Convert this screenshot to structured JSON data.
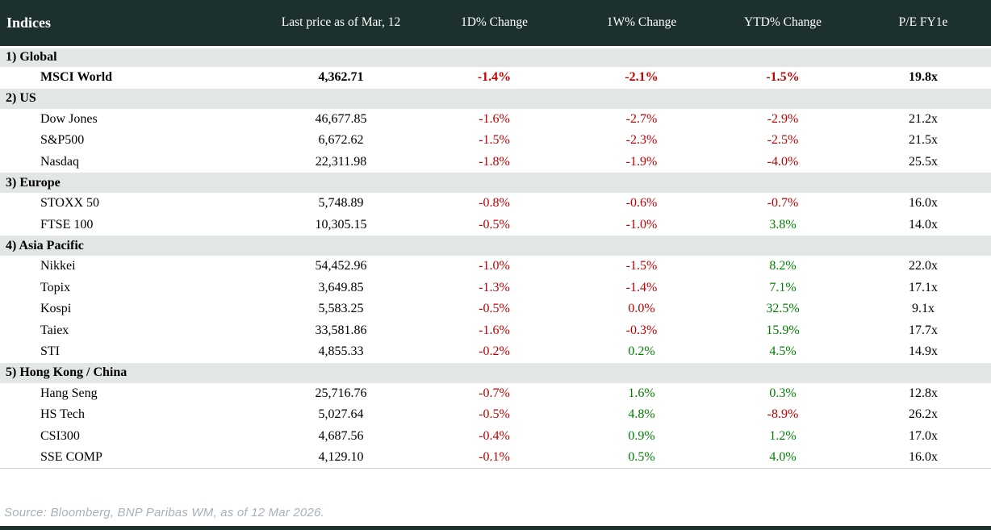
{
  "table": {
    "headers": [
      "Indices",
      "Last price as of Mar, 12",
      "1D% Change",
      "1W% Change",
      "YTD% Change",
      "P/E FY1e"
    ],
    "sections": [
      {
        "label": "1) Global",
        "rows": [
          {
            "name": "MSCI World",
            "emphasis": true,
            "price": "4,362.71",
            "changes": [
              {
                "value": "-1.4%",
                "trend": "neg"
              },
              {
                "value": "-2.1%",
                "trend": "neg"
              },
              {
                "value": "-1.5%",
                "trend": "neg"
              }
            ],
            "pe": "19.8x"
          }
        ]
      },
      {
        "label": "2) US",
        "rows": [
          {
            "name": "Dow Jones",
            "price": "46,677.85",
            "changes": [
              {
                "value": "-1.6%",
                "trend": "neg"
              },
              {
                "value": "-2.7%",
                "trend": "neg"
              },
              {
                "value": "-2.9%",
                "trend": "neg"
              }
            ],
            "pe": "21.2x"
          },
          {
            "name": "S&P500",
            "price": "6,672.62",
            "changes": [
              {
                "value": "-1.5%",
                "trend": "neg"
              },
              {
                "value": "-2.3%",
                "trend": "neg"
              },
              {
                "value": "-2.5%",
                "trend": "neg"
              }
            ],
            "pe": "21.5x"
          },
          {
            "name": "Nasdaq",
            "price": "22,311.98",
            "changes": [
              {
                "value": "-1.8%",
                "trend": "neg"
              },
              {
                "value": "-1.9%",
                "trend": "neg"
              },
              {
                "value": "-4.0%",
                "trend": "neg"
              }
            ],
            "pe": "25.5x"
          }
        ]
      },
      {
        "label": "3) Europe",
        "rows": [
          {
            "name": "STOXX 50",
            "price": "5,748.89",
            "changes": [
              {
                "value": "-0.8%",
                "trend": "neg"
              },
              {
                "value": "-0.6%",
                "trend": "neg"
              },
              {
                "value": "-0.7%",
                "trend": "neg"
              }
            ],
            "pe": "16.0x"
          },
          {
            "name": "FTSE 100",
            "price": "10,305.15",
            "changes": [
              {
                "value": "-0.5%",
                "trend": "neg"
              },
              {
                "value": "-1.0%",
                "trend": "neg"
              },
              {
                "value": "3.8%",
                "trend": "pos"
              }
            ],
            "pe": "14.0x"
          }
        ]
      },
      {
        "label": "4) Asia Pacific",
        "rows": [
          {
            "name": "Nikkei",
            "price": "54,452.96",
            "changes": [
              {
                "value": "-1.0%",
                "trend": "neg"
              },
              {
                "value": "-1.5%",
                "trend": "neg"
              },
              {
                "value": "8.2%",
                "trend": "pos"
              }
            ],
            "pe": "22.0x"
          },
          {
            "name": "Topix",
            "price": "3,649.85",
            "changes": [
              {
                "value": "-1.3%",
                "trend": "neg"
              },
              {
                "value": "-1.4%",
                "trend": "neg"
              },
              {
                "value": "7.1%",
                "trend": "pos"
              }
            ],
            "pe": "17.1x"
          },
          {
            "name": "Kospi",
            "price": "5,583.25",
            "changes": [
              {
                "value": "-0.5%",
                "trend": "neg"
              },
              {
                "value": "0.0%",
                "trend": "neg"
              },
              {
                "value": "32.5%",
                "trend": "pos"
              }
            ],
            "pe": "9.1x"
          },
          {
            "name": "Taiex",
            "price": "33,581.86",
            "changes": [
              {
                "value": "-1.6%",
                "trend": "neg"
              },
              {
                "value": "-0.3%",
                "trend": "neg"
              },
              {
                "value": "15.9%",
                "trend": "pos"
              }
            ],
            "pe": "17.7x"
          },
          {
            "name": "STI",
            "price": "4,855.33",
            "changes": [
              {
                "value": "-0.2%",
                "trend": "neg"
              },
              {
                "value": "0.2%",
                "trend": "pos"
              },
              {
                "value": "4.5%",
                "trend": "pos"
              }
            ],
            "pe": "14.9x"
          }
        ]
      },
      {
        "label": "5) Hong Kong / China",
        "rows": [
          {
            "name": "Hang Seng",
            "price": "25,716.76",
            "changes": [
              {
                "value": "-0.7%",
                "trend": "neg"
              },
              {
                "value": "1.6%",
                "trend": "pos"
              },
              {
                "value": "0.3%",
                "trend": "pos"
              }
            ],
            "pe": "12.8x"
          },
          {
            "name": "HS Tech",
            "price": "5,027.64",
            "changes": [
              {
                "value": "-0.5%",
                "trend": "neg"
              },
              {
                "value": "4.8%",
                "trend": "pos"
              },
              {
                "value": "-8.9%",
                "trend": "neg"
              }
            ],
            "pe": "26.2x"
          },
          {
            "name": "CSI300",
            "price": "4,687.56",
            "changes": [
              {
                "value": "-0.4%",
                "trend": "neg"
              },
              {
                "value": "0.9%",
                "trend": "pos"
              },
              {
                "value": "1.2%",
                "trend": "pos"
              }
            ],
            "pe": "17.0x"
          },
          {
            "name": "SSE COMP",
            "price": "4,129.10",
            "changes": [
              {
                "value": "-0.1%",
                "trend": "neg"
              },
              {
                "value": "0.5%",
                "trend": "pos"
              },
              {
                "value": "4.0%",
                "trend": "pos"
              }
            ],
            "pe": "16.0x"
          }
        ]
      }
    ]
  },
  "footer": {
    "source": "Source: Bloomberg, BNP Paribas WM, as of 12 Mar 2026."
  },
  "colors": {
    "header_bg": "#1c312d",
    "section_bg": "#e2e7e3",
    "negative": "#c00000",
    "positive": "#008000",
    "footer_text": "#a7b1bb",
    "bottom_bar": "#1c312d"
  }
}
